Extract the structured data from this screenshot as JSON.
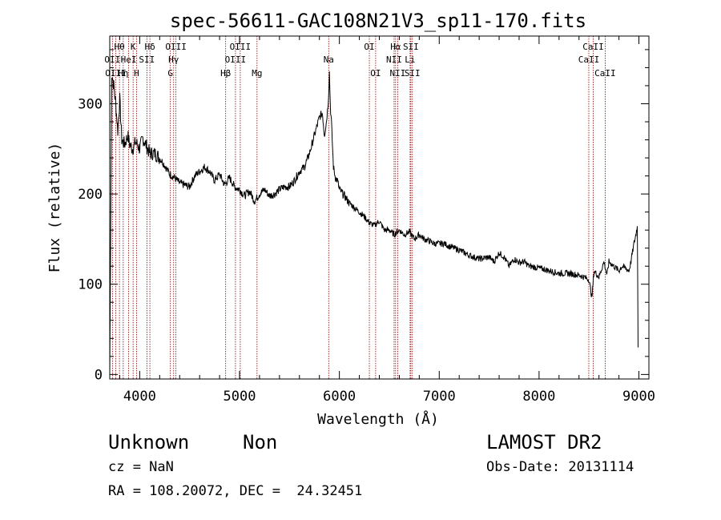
{
  "chart_data": {
    "type": "line",
    "title": "spec-56611-GAC108N21V3_sp11-170.fits",
    "xlabel": "Wavelength (Å)",
    "ylabel": "Flux (relative)",
    "xlim": [
      3700,
      9100
    ],
    "ylim": [
      -5,
      375
    ],
    "xticks": [
      4000,
      5000,
      6000,
      7000,
      8000,
      9000
    ],
    "yticks": [
      0,
      100,
      200,
      300
    ],
    "line_color": "#000000",
    "marker_color": "#8b0000",
    "grid": false,
    "series": [
      {
        "values_x": [
          3700,
          3720,
          3740,
          3760,
          3780,
          3800,
          3820,
          3850,
          3880,
          3900,
          3930,
          3960,
          4000,
          4030,
          4060,
          4100,
          4150,
          4200,
          4250,
          4300,
          4350,
          4400,
          4450,
          4500,
          4550,
          4600,
          4650,
          4700,
          4750,
          4800,
          4850,
          4900,
          4950,
          5000,
          5050,
          5100,
          5150,
          5200,
          5250,
          5300,
          5350,
          5400,
          5450,
          5500,
          5550,
          5600,
          5650,
          5700,
          5750,
          5800,
          5830,
          5850,
          5870,
          5890,
          5900,
          5910,
          5920,
          5940,
          5960,
          5980,
          6000,
          6050,
          6100,
          6150,
          6200,
          6250,
          6300,
          6350,
          6400,
          6450,
          6500,
          6550,
          6600,
          6650,
          6700,
          6750,
          6800,
          6850,
          6900,
          6950,
          7000,
          7050,
          7100,
          7150,
          7200,
          7300,
          7400,
          7500,
          7550,
          7600,
          7650,
          7700,
          7750,
          7800,
          7850,
          7900,
          8000,
          8100,
          8200,
          8300,
          8400,
          8450,
          8500,
          8530,
          8550,
          8600,
          8650,
          8680,
          8700,
          8750,
          8800,
          8830,
          8860,
          8900,
          8920,
          8950,
          8970,
          8985,
          8992
        ],
        "values_y": [
          0,
          335,
          320,
          300,
          270,
          305,
          260,
          255,
          265,
          255,
          250,
          258,
          250,
          262,
          255,
          245,
          245,
          240,
          232,
          222,
          218,
          212,
          210,
          208,
          220,
          225,
          230,
          225,
          215,
          222,
          210,
          218,
          208,
          205,
          198,
          203,
          192,
          200,
          205,
          198,
          200,
          205,
          208,
          208,
          215,
          225,
          230,
          245,
          265,
          285,
          290,
          265,
          280,
          305,
          335,
          295,
          280,
          230,
          218,
          215,
          205,
          198,
          190,
          185,
          180,
          175,
          168,
          165,
          170,
          160,
          160,
          155,
          160,
          155,
          158,
          150,
          155,
          150,
          148,
          145,
          145,
          145,
          142,
          140,
          138,
          132,
          128,
          130,
          125,
          135,
          130,
          120,
          128,
          124,
          125,
          120,
          118,
          115,
          112,
          112,
          110,
          108,
          105,
          85,
          115,
          108,
          125,
          110,
          125,
          120,
          115,
          120,
          118,
          115,
          125,
          145,
          155,
          165,
          30
        ]
      }
    ],
    "lines": [
      {
        "label": "Hθ",
        "x": 3797,
        "row": 1
      },
      {
        "label": "OII",
        "x": 3727,
        "row": 2
      },
      {
        "label": "OIII",
        "x": 3760,
        "row": 3
      },
      {
        "label": "K",
        "x": 3934,
        "row": 1
      },
      {
        "label": "HeI",
        "x": 3889,
        "row": 2
      },
      {
        "label": "Hη",
        "x": 3835,
        "row": 3
      },
      {
        "label": "SII",
        "x": 4072,
        "row": 2
      },
      {
        "label": "H",
        "x": 3968,
        "row": 3
      },
      {
        "label": "Hδ",
        "x": 4102,
        "row": 1
      },
      {
        "label": "OIII",
        "x": 4363,
        "row": 1
      },
      {
        "label": "Hγ",
        "x": 4340,
        "row": 2
      },
      {
        "label": "G",
        "x": 4307,
        "row": 3
      },
      {
        "label": "OIII",
        "x": 5007,
        "row": 1
      },
      {
        "label": "OIII",
        "x": 4959,
        "row": 2
      },
      {
        "label": "Hβ",
        "x": 4861,
        "row": 3
      },
      {
        "label": "Mg",
        "x": 5175,
        "row": 3
      },
      {
        "label": "Na",
        "x": 5893,
        "row": 2
      },
      {
        "label": "OI",
        "x": 6300,
        "row": 1
      },
      {
        "label": "OI",
        "x": 6363,
        "row": 3
      },
      {
        "label": "Hα",
        "x": 6563,
        "row": 1
      },
      {
        "label": "NII",
        "x": 6548,
        "row": 2
      },
      {
        "label": "NII",
        "x": 6584,
        "row": 3
      },
      {
        "label": "SII",
        "x": 6716,
        "row": 1
      },
      {
        "label": "Li",
        "x": 6708,
        "row": 2
      },
      {
        "label": "SII",
        "x": 6731,
        "row": 3
      },
      {
        "label": "CaII",
        "x": 8542,
        "row": 1
      },
      {
        "label": "CaII",
        "x": 8498,
        "row": 2
      },
      {
        "label": "CaII",
        "x": 8662,
        "row": 3
      }
    ]
  },
  "info": {
    "class": "Unknown",
    "subclass": "Non",
    "survey": "LAMOST DR2",
    "cz": "cz = NaN",
    "obs_date": "Obs-Date: 20131114",
    "coords": "RA = 108.20072, DEC =  24.32451"
  }
}
